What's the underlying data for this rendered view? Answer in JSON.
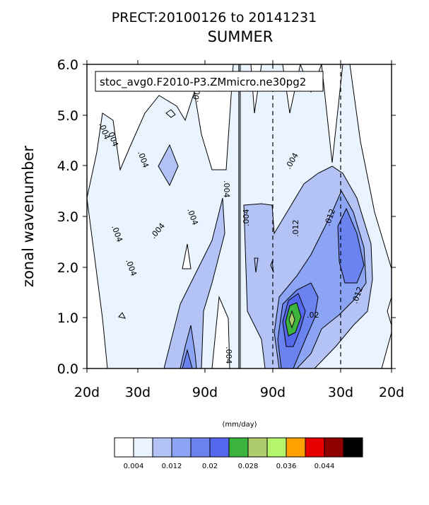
{
  "chart_data": {
    "type": "heatmap",
    "title": "PRECT:20100126 to 20141231",
    "subtitle": "SUMMER",
    "annotation": "stoc_avg0.F2010-P3.ZMmicro.ne30pg2",
    "xlabel": "",
    "ylabel": "zonal wavenumber",
    "ylim": [
      0,
      6
    ],
    "y_ticks": [
      "0.0",
      "1.0",
      "2.0",
      "3.0",
      "4.0",
      "5.0",
      "6.0"
    ],
    "x_ticks": [
      "20d",
      "30d",
      "90d",
      "90d",
      "30d",
      "20d"
    ],
    "units": "(mm/day)",
    "levels": [
      0.002,
      0.004,
      0.008,
      0.012,
      0.016,
      0.02,
      0.024,
      0.028,
      0.032,
      0.036,
      0.04,
      0.044,
      0.048
    ],
    "colorbar_labels": [
      "0.004",
      "0.012",
      "0.02",
      "0.028",
      "0.036",
      "0.044"
    ],
    "colorbar_colors": [
      "#ffffff",
      "#eaf4ff",
      "#b3c3f6",
      "#8ba4f3",
      "#6b83ef",
      "#5567ec",
      "#3db43e",
      "#afcc6d",
      "#b3f56b",
      "#ffa100",
      "#e60000",
      "#8f0000",
      "#000000"
    ],
    "contour_labels": [
      ".004",
      ".004",
      ".004",
      ".004",
      ".004",
      ".004",
      ".004",
      ".004",
      ".004",
      ".004",
      ".004",
      ".004",
      ".012",
      ".012",
      ".012",
      ".02"
    ],
    "regions": [
      {
        "level": "0.004",
        "color": "#eaf4ff"
      },
      {
        "level": "0.008",
        "color": "#b3c3f6"
      },
      {
        "level": "0.012",
        "color": "#8ba4f3"
      },
      {
        "level": "0.016",
        "color": "#6b83ef"
      },
      {
        "level": "0.02",
        "color": "#5567ec"
      },
      {
        "level": "0.024",
        "color": "#3db43e"
      },
      {
        "level": "0.028",
        "color": "#afcc6d"
      }
    ]
  }
}
